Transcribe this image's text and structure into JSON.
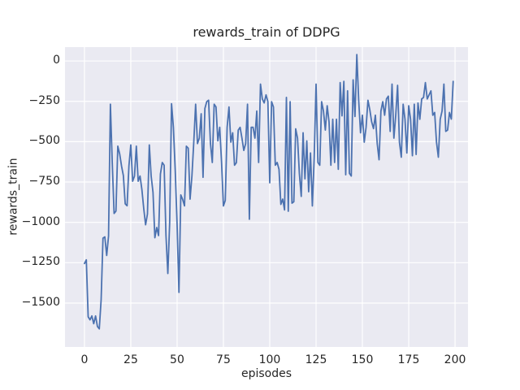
{
  "chart_data": {
    "type": "line",
    "title": "rewards_train of DDPG",
    "xlabel": "episodes",
    "ylabel": "rewards_train",
    "x_ticks": [
      0,
      25,
      50,
      75,
      100,
      125,
      150,
      175,
      200
    ],
    "y_ticks": [
      0,
      -250,
      -500,
      -750,
      -1000,
      -1250,
      -1500
    ],
    "xlim": [
      -10.5,
      207
    ],
    "ylim": [
      -1772,
      86
    ],
    "grid": true,
    "legend_position": "none",
    "style": {
      "plot_background": "#eaeaf2",
      "figure_background": "#ffffff",
      "grid_color": "#ffffff",
      "line_color": "#4c72b0",
      "text_color": "#262626",
      "line_width": 1.8
    },
    "series": [
      {
        "name": "rewards_train",
        "x_mode": "index",
        "x_start": 0,
        "x_step": 1,
        "values": [
          -1255,
          -1232,
          -1585,
          -1604,
          -1580,
          -1628,
          -1580,
          -1645,
          -1660,
          -1480,
          -1098,
          -1090,
          -1205,
          -1085,
          -268,
          -630,
          -945,
          -930,
          -528,
          -575,
          -650,
          -710,
          -885,
          -897,
          -650,
          -520,
          -745,
          -713,
          -528,
          -745,
          -713,
          -797,
          -915,
          -1015,
          -948,
          -520,
          -713,
          -814,
          -1095,
          -1032,
          -1082,
          -700,
          -629,
          -646,
          -1082,
          -1317,
          -1000,
          -265,
          -411,
          -679,
          -1015,
          -1434,
          -830,
          -858,
          -898,
          -528,
          -540,
          -856,
          -713,
          -503,
          -268,
          -512,
          -478,
          -327,
          -721,
          -294,
          -252,
          -243,
          -510,
          -629,
          -268,
          -285,
          -495,
          -411,
          -629,
          -898,
          -864,
          -411,
          -285,
          -503,
          -445,
          -646,
          -630,
          -428,
          -411,
          -478,
          -554,
          -512,
          -268,
          -981,
          -411,
          -411,
          -478,
          -310,
          -629,
          -143,
          -235,
          -260,
          -210,
          -252,
          -755,
          -252,
          -285,
          -646,
          -629,
          -671,
          -889,
          -856,
          -923,
          -226,
          -931,
          -252,
          -881,
          -872,
          -420,
          -478,
          -700,
          -839,
          -445,
          -730,
          -495,
          -810,
          -570,
          -898,
          -596,
          -143,
          -629,
          -646,
          -252,
          -310,
          -428,
          -277,
          -377,
          -646,
          -361,
          -629,
          -361,
          -671,
          -134,
          -340,
          -126,
          -705,
          -185,
          -696,
          -713,
          -117,
          -344,
          40,
          -243,
          -445,
          -336,
          -503,
          -411,
          -243,
          -302,
          -377,
          -419,
          -336,
          -512,
          -612,
          -310,
          -252,
          -336,
          -235,
          -218,
          -436,
          -143,
          -478,
          -336,
          -151,
          -503,
          -596,
          -268,
          -361,
          -570,
          -277,
          -361,
          -587,
          -268,
          -579,
          -260,
          -361,
          -235,
          -226,
          -134,
          -235,
          -210,
          -185,
          -336,
          -319,
          -503,
          -596,
          -361,
          -310,
          -143,
          -436,
          -428,
          -319,
          -360,
          -126
        ]
      }
    ]
  }
}
